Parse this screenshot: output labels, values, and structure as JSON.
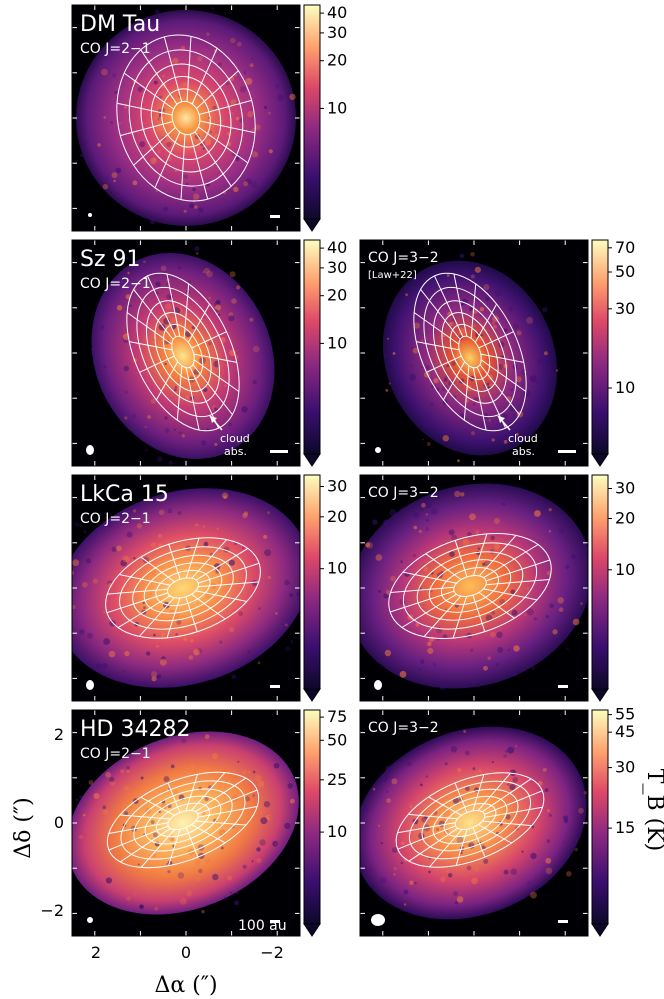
{
  "figure": {
    "beam_scale_label": "100 au",
    "colorbar_label": "T_B (K)",
    "x_axis_label": "Δα (″)",
    "y_axis_label": "Δδ (″)",
    "x_ticks": [
      "2",
      "0",
      "−2"
    ],
    "y_ticks": [
      "2",
      "0",
      "−2"
    ]
  },
  "panels": [
    {
      "source": "DM Tau",
      "line": "CO J=2−1",
      "note": "",
      "annotation": "",
      "colorbar_ticks": [
        "40",
        "30",
        "20",
        "10"
      ],
      "colorbar_values": [
        40,
        30,
        20,
        10
      ],
      "colorbar_range": [
        2,
        45
      ]
    },
    {
      "source": "Sz 91",
      "line": "CO J=2−1",
      "note": "",
      "annotation": "cloud abs.",
      "colorbar_ticks": [
        "40",
        "30",
        "20",
        "10"
      ],
      "colorbar_values": [
        40,
        30,
        20,
        10
      ],
      "colorbar_range": [
        2,
        45
      ]
    },
    {
      "source": "",
      "line": "CO J=3−2",
      "note": "[Law+22]",
      "annotation": "cloud abs.",
      "colorbar_ticks": [
        "70",
        "50",
        "30",
        "10"
      ],
      "colorbar_values": [
        70,
        50,
        30,
        10
      ],
      "colorbar_range": [
        4,
        78
      ]
    },
    {
      "source": "LkCa 15",
      "line": "CO J=2−1",
      "note": "",
      "annotation": "",
      "colorbar_ticks": [
        "30",
        "20",
        "10"
      ],
      "colorbar_values": [
        30,
        20,
        10
      ],
      "colorbar_range": [
        2,
        35
      ]
    },
    {
      "source": "",
      "line": "CO J=3−2",
      "note": "",
      "annotation": "",
      "colorbar_ticks": [
        "30",
        "20",
        "10"
      ],
      "colorbar_values": [
        30,
        20,
        10
      ],
      "colorbar_range": [
        2,
        36
      ]
    },
    {
      "source": "HD 34282",
      "line": "CO J=2−1",
      "note": "",
      "annotation": "",
      "colorbar_ticks": [
        "75",
        "50",
        "25",
        "10"
      ],
      "colorbar_values": [
        75,
        50,
        25,
        10
      ],
      "colorbar_range": [
        2,
        85
      ]
    },
    {
      "source": "",
      "line": "CO J=3−2",
      "note": "",
      "annotation": "",
      "colorbar_ticks": [
        "55",
        "45",
        "30",
        "15"
      ],
      "colorbar_values": [
        55,
        45,
        30,
        15
      ],
      "colorbar_range": [
        5,
        58
      ]
    }
  ]
}
